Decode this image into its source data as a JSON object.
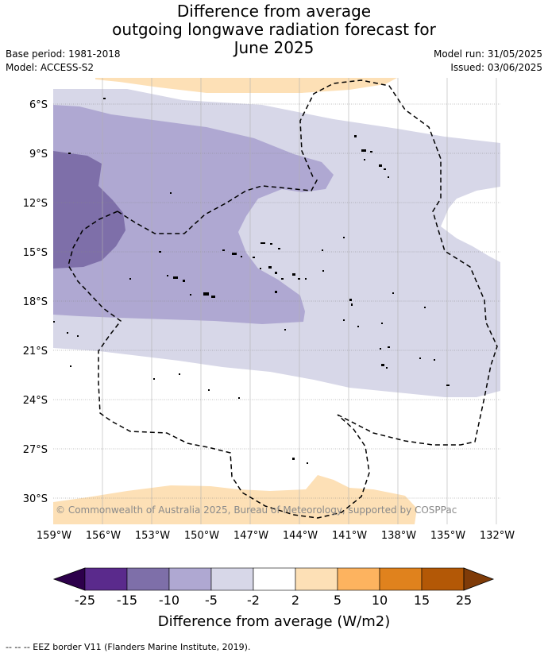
{
  "title": {
    "line1": "Difference from average",
    "line2": "outgoing longwave radiation forecast for",
    "line3": "June 2025"
  },
  "meta": {
    "base_period": "Base period: 1981-2018",
    "model": "Model: ACCESS-S2",
    "model_run": "Model run: 31/05/2025",
    "issued": "Issued: 03/06/2025"
  },
  "map": {
    "lat_labels": [
      "6°S",
      "9°S",
      "12°S",
      "15°S",
      "18°S",
      "21°S",
      "24°S",
      "27°S",
      "30°S"
    ],
    "lon_labels": [
      "159°W",
      "156°W",
      "153°W",
      "150°W",
      "147°W",
      "144°W",
      "141°W",
      "138°W",
      "135°W",
      "132°W"
    ],
    "copyright": "© Commonwealth of Australia 2025, Bureau of Meteorology, supported by COSPPac",
    "colors": {
      "band_-25_-15": "#5a2a8c",
      "band_-15_-10": "#7e6fa9",
      "band_-10_-5": "#afa8d2",
      "band_-5_-2": "#d7d7e8",
      "band_-2_2": "#ffffff",
      "band_2_5": "#fde0b6",
      "band_5_10": "#fdb35f",
      "band_10_15": "#e0821d",
      "band_15_25": "#b35806"
    }
  },
  "colorbar": {
    "tick_labels": [
      "-25",
      "-15",
      "-10",
      "-5",
      "-2",
      "2",
      "5",
      "10",
      "15",
      "25"
    ],
    "title": "Difference from average (W/m2)",
    "colors": [
      "#5a2a8c",
      "#7e6fa9",
      "#afa8d2",
      "#d7d7e8",
      "#ffffff",
      "#fde0b6",
      "#fdb35f",
      "#e0821d",
      "#b35806"
    ],
    "under_color": "#2d004b",
    "over_color": "#7f3b08"
  },
  "footnote": "-- -- -- EEZ border V11 (Flanders Marine Institute, 2019)."
}
